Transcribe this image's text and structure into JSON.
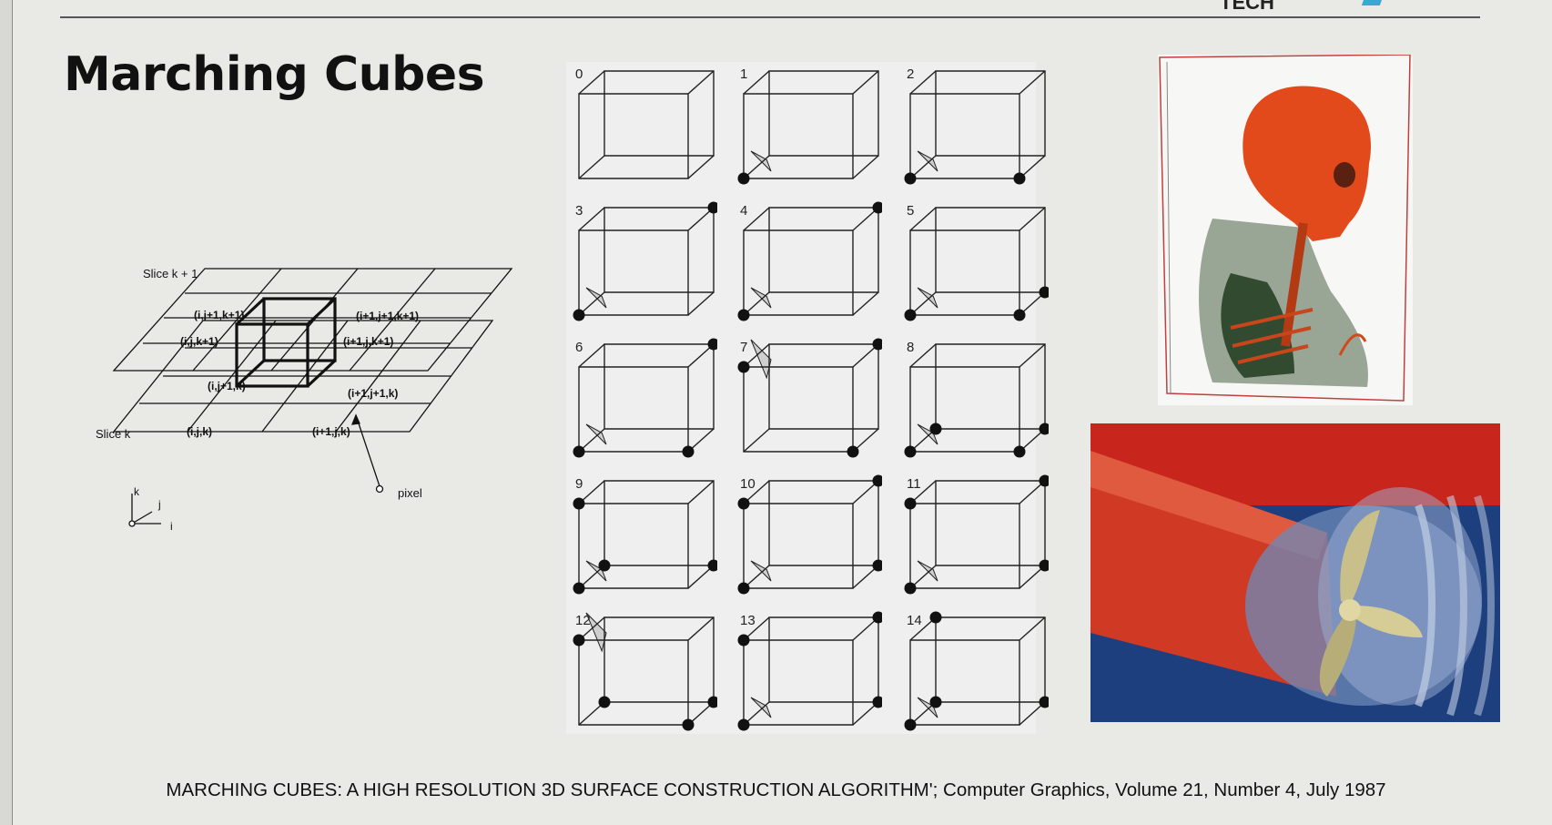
{
  "slide": {
    "logo_text": "TECH",
    "title": "Marching Cubes",
    "citation": "MARCHING CUBES: A HIGH RESOLUTION 3D SURFACE CONSTRUCTION ALGORITHM'; Computer Graphics, Volume 21, Number 4, July 1987"
  },
  "grid_diagram": {
    "slice_top": "Slice k + 1",
    "slice_bottom": "Slice k",
    "labels": {
      "top_back_left": "(i,j+1,k+1)",
      "top_back_right": "(i+1,j+1,k+1)",
      "top_front_left": "(i,j,k+1)",
      "top_front_right": "(i+1,j,k+1)",
      "bottom_back_left": "(i,j+1,k)",
      "bottom_back_right": "(i+1,j+1,k)",
      "bottom_front_left": "(i,j,k)",
      "bottom_front_right": "(i+1,j,k)"
    },
    "pixel_label": "pixel",
    "axis_k": "k",
    "axis_j": "j",
    "axis_i": "i"
  },
  "cases": {
    "numbers": [
      "0",
      "1",
      "2",
      "3",
      "4",
      "5",
      "6",
      "7",
      "8",
      "9",
      "10",
      "11",
      "12",
      "13",
      "14"
    ]
  },
  "images": {
    "skull": "volume-rendered-skull-image",
    "propeller": "propeller-vortex-simulation-image"
  }
}
